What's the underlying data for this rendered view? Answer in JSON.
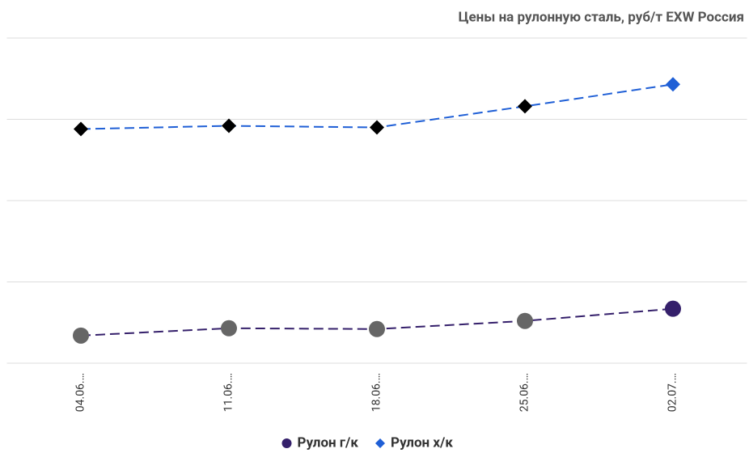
{
  "chart_data": {
    "type": "line",
    "title": "Цены на рулонную сталь, руб/т EXW Россия",
    "categories": [
      "04.06.…",
      "11.06.…",
      "18.06.…",
      "25.06.…",
      "02.07.…"
    ],
    "series": [
      {
        "name": "Рулон г/к",
        "color": "#35206b",
        "marker": "circle",
        "point_colors": [
          "#666666",
          "#666666",
          "#666666",
          "#666666",
          "#35206b"
        ],
        "values": [
          0.34,
          0.43,
          0.42,
          0.52,
          0.67
        ]
      },
      {
        "name": "Рулон х/к",
        "color": "#1f5fd6",
        "marker": "diamond",
        "point_colors": [
          "#000000",
          "#000000",
          "#000000",
          "#000000",
          "#1f5fd6"
        ],
        "values": [
          2.88,
          2.92,
          2.9,
          3.16,
          3.43
        ]
      }
    ],
    "ylim": [
      0,
      4
    ],
    "yticks": [
      0,
      1,
      2,
      3,
      4
    ],
    "grid": true,
    "legend": "bottom"
  }
}
